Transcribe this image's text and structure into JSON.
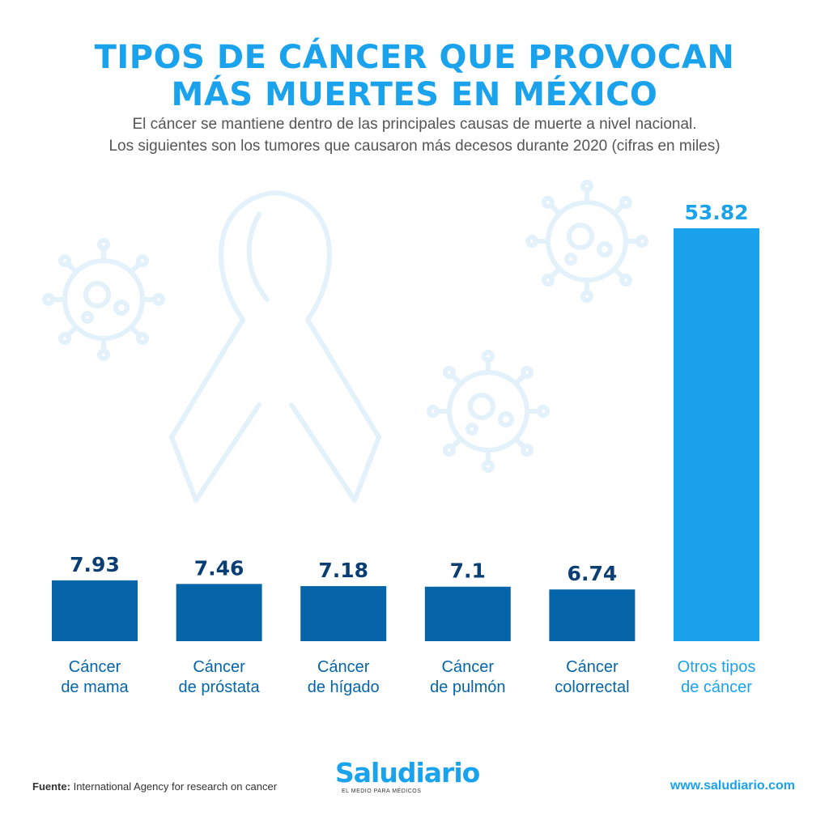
{
  "header": {
    "title_line1": "TIPOS DE CÁNCER QUE PROVOCAN",
    "title_line2": "MÁS MUERTES EN MÉXICO",
    "subtitle_line1": "El cáncer se mantiene dentro de las principales causas de muerte a nivel nacional.",
    "subtitle_line2": "Los siguientes son los tumores que causaron más decesos durante 2020 (cifras en miles)"
  },
  "colors": {
    "title": "#1aa3ec",
    "bar_dark": "#0565a8",
    "bar_highlight": "#1aa3ec",
    "value_dark": "#0b3f73",
    "label_dark": "#0565a8",
    "label_highlight": "#1aa3ec",
    "decoration": "#e3f1fb"
  },
  "chart_data": {
    "type": "bar",
    "categories": [
      [
        "Cáncer",
        "de mama"
      ],
      [
        "Cáncer",
        "de próstata"
      ],
      [
        "Cáncer",
        "de hígado"
      ],
      [
        "Cáncer",
        "de pulmón"
      ],
      [
        "Cáncer",
        "colorrectal"
      ],
      [
        "Otros tipos",
        "de cáncer"
      ]
    ],
    "values": [
      7.93,
      7.46,
      7.18,
      7.1,
      6.74,
      53.82
    ],
    "value_labels": [
      "7.93",
      "7.46",
      "7.18",
      "7.1",
      "6.74",
      "53.82"
    ],
    "highlight": [
      false,
      false,
      false,
      false,
      false,
      true
    ],
    "title": "TIPOS DE CÁNCER QUE PROVOCAN MÁS MUERTES EN MÉXICO",
    "xlabel": "",
    "ylabel": "",
    "unit": "miles",
    "grid": false
  },
  "footer": {
    "source_label": "Fuente:",
    "source_text": "International Agency for research on cancer",
    "logo_text": "Saludiario",
    "logo_tagline": "EL MEDIO PARA MÉDICOS",
    "url": "www.saludiario.com"
  }
}
